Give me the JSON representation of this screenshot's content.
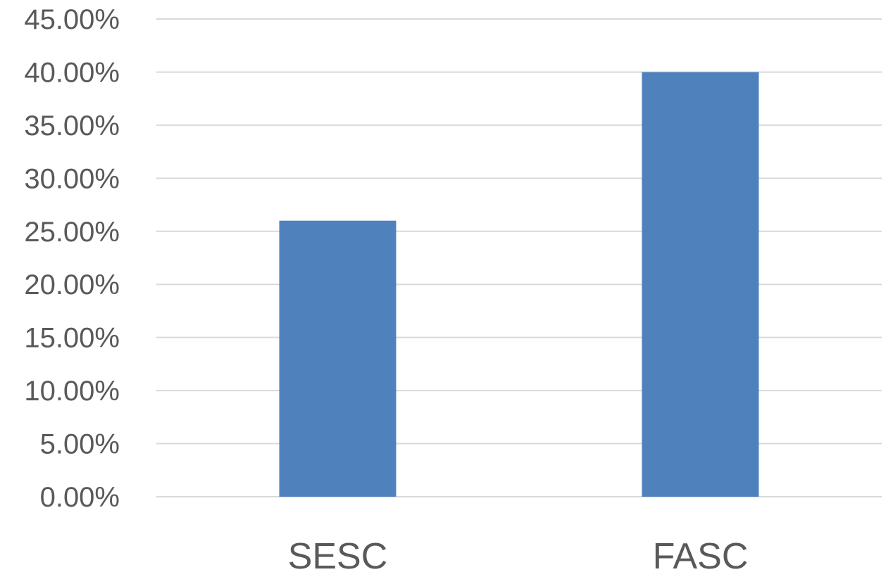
{
  "chart_data": {
    "type": "bar",
    "categories": [
      "SESC",
      "FASC"
    ],
    "values": [
      26.0,
      40.0
    ],
    "title": "",
    "xlabel": "",
    "ylabel": "",
    "ylim": [
      0,
      45
    ],
    "y_ticks": [
      0,
      5,
      10,
      15,
      20,
      25,
      30,
      35,
      40,
      45
    ],
    "y_tick_labels": [
      "0.00%",
      "5.00%",
      "10.00%",
      "15.00%",
      "20.00%",
      "25.00%",
      "30.00%",
      "35.00%",
      "40.00%",
      "45.00%"
    ],
    "grid": true,
    "legend": "none",
    "colors": {
      "bar": "#4F81BD",
      "grid": "#D9D9D9",
      "text": "#595959"
    }
  }
}
